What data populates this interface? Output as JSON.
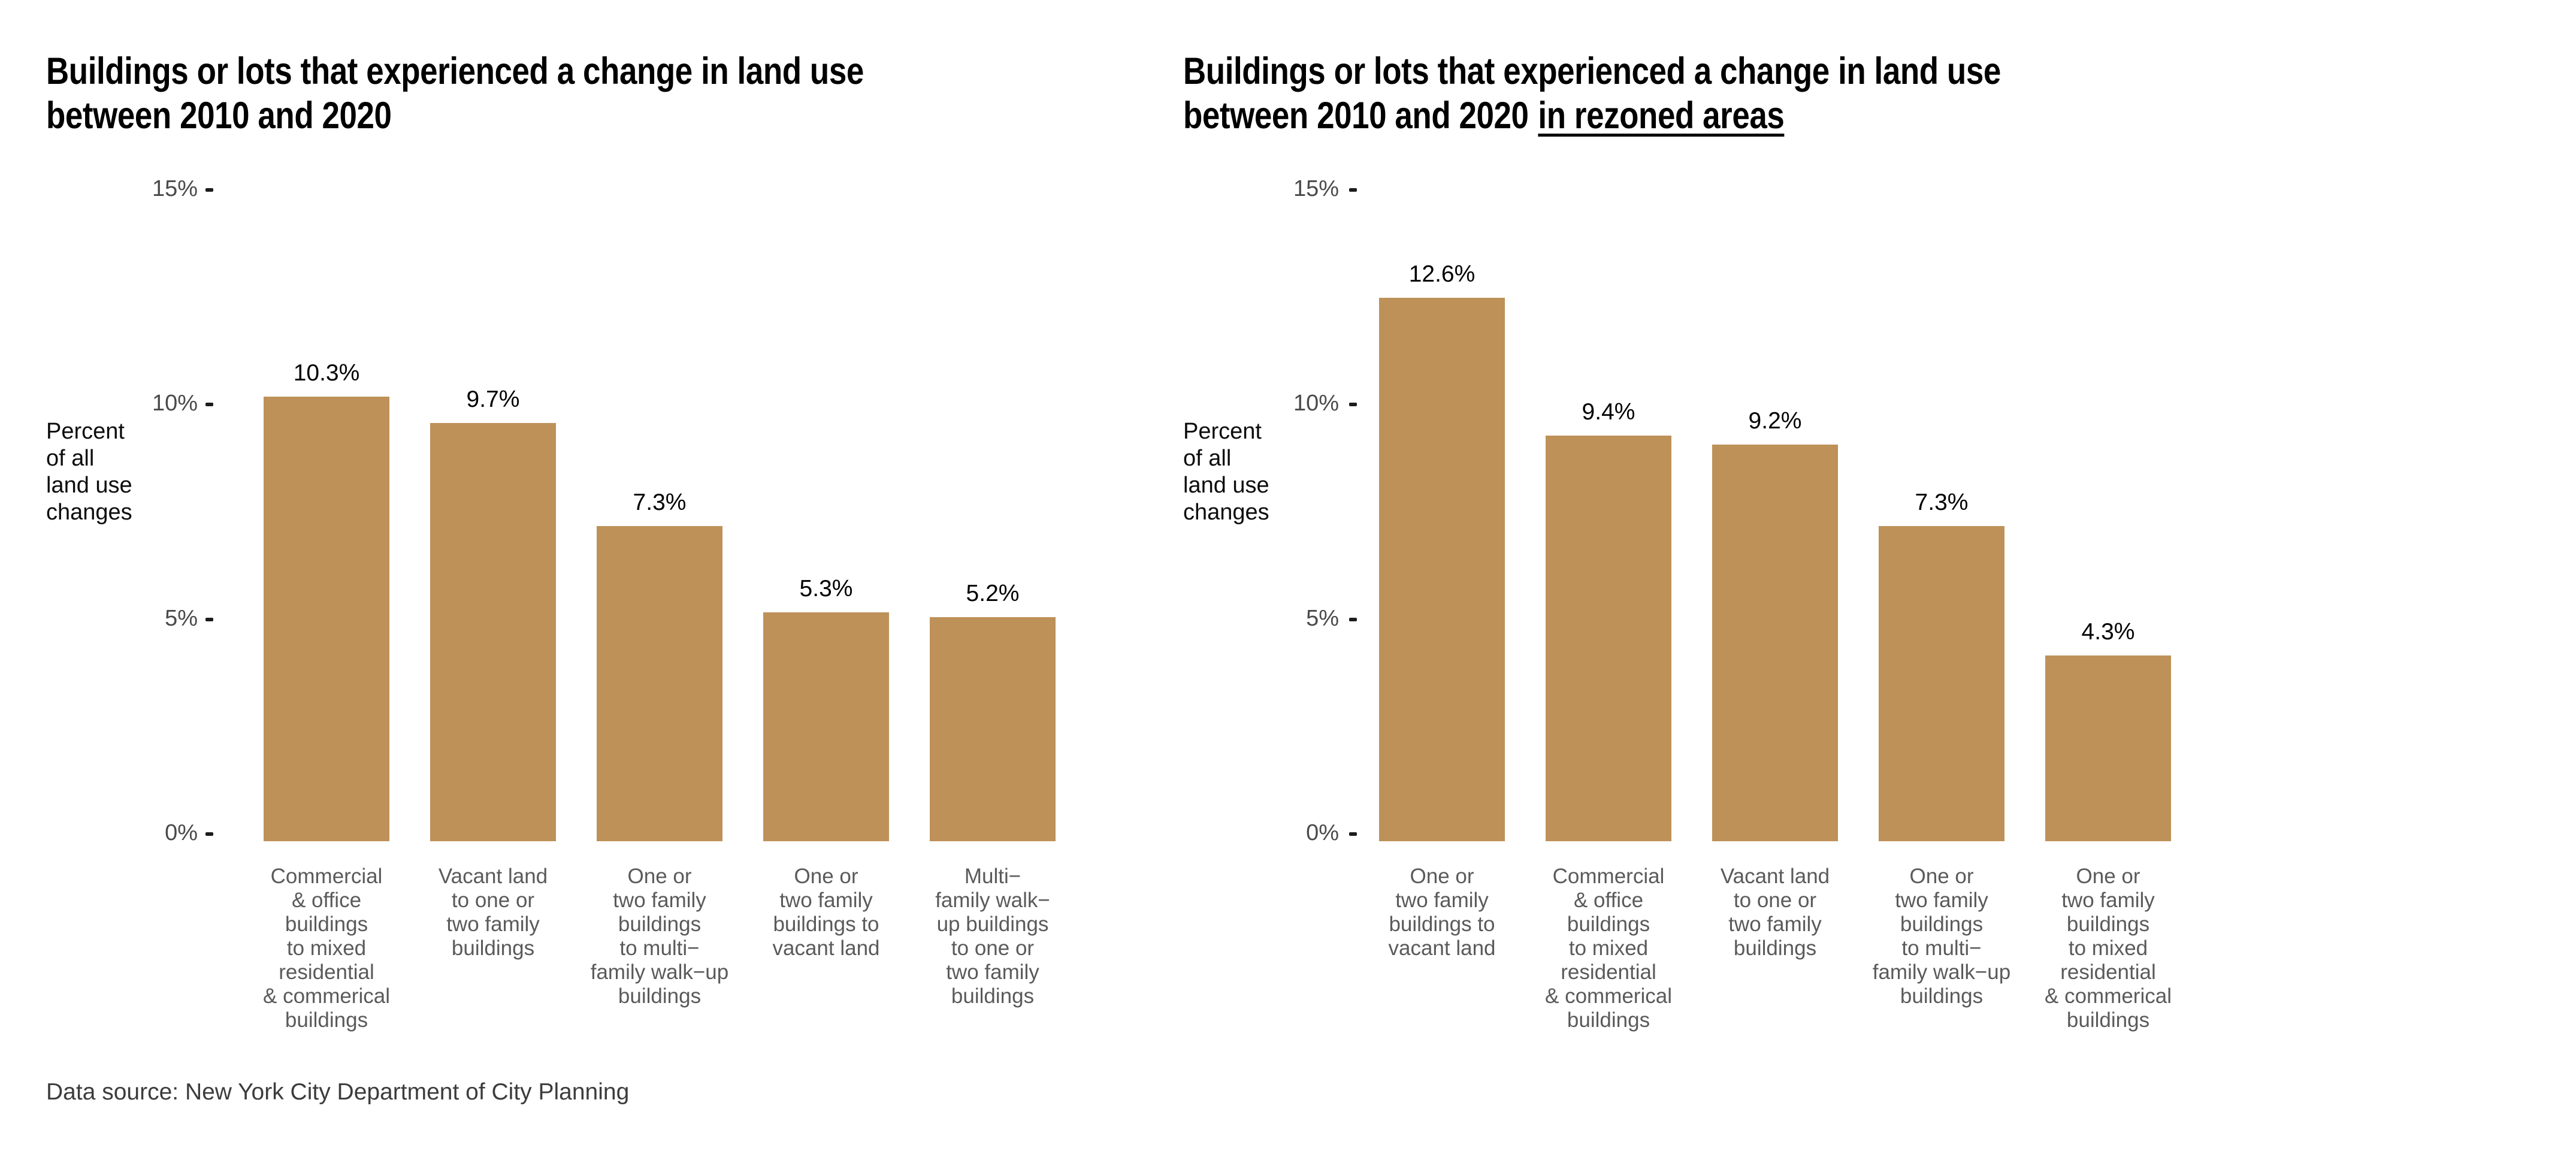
{
  "page": {
    "background_color": "#ffffff",
    "source_note": "Data source: New York City Department of City Planning"
  },
  "colors": {
    "page_bg": "#ffffff",
    "bar_fill": "#bd9158",
    "title_text": "#000000",
    "axis_tick_text": "#4a4a4a",
    "tick_mark": "#1c1c1c",
    "category_text": "#5a5a5a",
    "value_label_text": "#000000",
    "source_text": "#3c3c3c"
  },
  "chart_data": [
    {
      "type": "bar",
      "title": "Buildings or lots that experienced a change in land use between 2010 and 2020",
      "title_line1": "Buildings or lots that experienced a change in land use",
      "title_line2": "between 2010 and 2020",
      "title_line2_underline": "",
      "ylabel": "Percent\nof all\nland use\nchanges",
      "xlabel": "",
      "ylim": [
        0,
        15
      ],
      "grid": "off",
      "legend": "none",
      "yticks": [
        {
          "value": 15,
          "label": "15%"
        },
        {
          "value": 10,
          "label": "10%"
        },
        {
          "value": 5,
          "label": "5%"
        },
        {
          "value": 0,
          "label": "0%"
        }
      ],
      "categories": [
        [
          "Commercial",
          "& office",
          "buildings",
          "to mixed",
          "residential",
          "& commerical",
          "buildings"
        ],
        [
          "Vacant land",
          "to one or",
          "two family",
          "buildings"
        ],
        [
          "One or",
          "two family",
          "buildings",
          "to multi−",
          "family walk−up",
          "buildings"
        ],
        [
          "One or",
          "two family",
          "buildings to",
          "vacant land"
        ],
        [
          "Multi−",
          "family walk−",
          "up buildings",
          "to one or",
          "two family",
          "buildings"
        ]
      ],
      "values": [
        10.3,
        9.7,
        7.3,
        5.3,
        5.2
      ],
      "value_labels": [
        "10.3%",
        "9.7%",
        "7.3%",
        "5.3%",
        "5.2%"
      ]
    },
    {
      "type": "bar",
      "title": "Buildings or lots that experienced a change in land use between 2010 and 2020 in rezoned areas",
      "title_line1": "Buildings or lots that experienced a change in land use",
      "title_line2": "between 2010 and 2020",
      "title_line2_underline": "in rezoned areas",
      "ylabel": "Percent\nof all\nland use\nchanges",
      "xlabel": "",
      "ylim": [
        0,
        15
      ],
      "grid": "off",
      "legend": "none",
      "yticks": [
        {
          "value": 15,
          "label": "15%"
        },
        {
          "value": 10,
          "label": "10%"
        },
        {
          "value": 5,
          "label": "5%"
        },
        {
          "value": 0,
          "label": "0%"
        }
      ],
      "categories": [
        [
          "One or",
          "two family",
          "buildings to",
          "vacant land"
        ],
        [
          "Commercial",
          "& office",
          "buildings",
          "to mixed",
          "residential",
          "& commerical",
          "buildings"
        ],
        [
          "Vacant land",
          "to one or",
          "two family",
          "buildings"
        ],
        [
          "One or",
          "two family",
          "buildings",
          "to multi−",
          "family walk−up",
          "buildings"
        ],
        [
          "One or",
          "two family",
          "buildings",
          "to mixed",
          "residential",
          "& commerical",
          "buildings"
        ]
      ],
      "values": [
        12.6,
        9.4,
        9.2,
        7.3,
        4.3
      ],
      "value_labels": [
        "12.6%",
        "9.4%",
        "9.2%",
        "7.3%",
        "4.3%"
      ]
    }
  ]
}
